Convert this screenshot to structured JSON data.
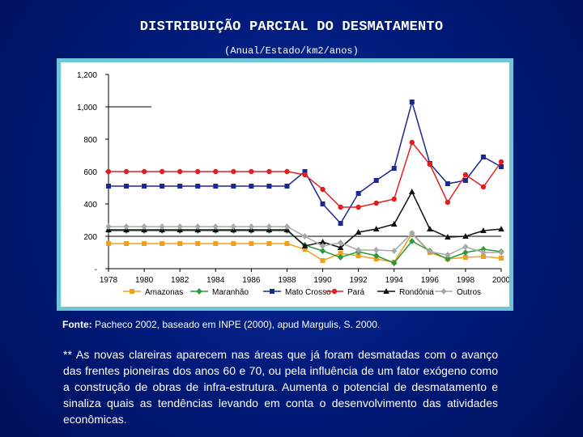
{
  "page": {
    "title": "DISTRIBUIÇÃO PARCIAL DO DESMATAMENTO",
    "subtitle": "(Anual/Estado/km2/anos)",
    "source_label": "Fonte:",
    "source_text": " Pacheco 2002, baseado em INPE (2000), apud Margulis, S. 2000.",
    "note": "** As novas clareiras aparecem nas áreas que já foram desmatadas com o avanço das frentes pioneiras dos anos 60 e 70, ou  pela influência de um fator exógeno como a construção de obras de infra-estrutura. Aumenta o potencial de desmatamento e sinaliza quais as tendências levando em conta o desenvolvimento das atividades econômicas."
  },
  "colors": {
    "background": "#001a78",
    "frame": "#6cc6d6"
  },
  "chart_data": {
    "type": "line",
    "x": [
      1978,
      1979,
      1980,
      1981,
      1982,
      1983,
      1984,
      1985,
      1986,
      1987,
      1988,
      1989,
      1990,
      1991,
      1992,
      1993,
      1994,
      1995,
      1996,
      1997,
      1998,
      1999,
      2000
    ],
    "x_tick_labels": [
      "1978",
      "1980",
      "1982",
      "1984",
      "1986",
      "1988",
      "1990",
      "1992",
      "1994",
      "1996",
      "1998",
      "2000"
    ],
    "x_ticks": [
      1978,
      1980,
      1982,
      1984,
      1986,
      1988,
      1990,
      1992,
      1994,
      1996,
      1998,
      2000
    ],
    "y_tick_labels": [
      "-",
      "200",
      "400",
      "600",
      "800",
      "1,000",
      "1,200"
    ],
    "y_ticks": [
      0,
      200,
      400,
      600,
      800,
      1000,
      1200
    ],
    "ylim": [
      0,
      1200
    ],
    "xlim": [
      1978,
      2000
    ],
    "legend_position": "bottom",
    "series": [
      {
        "name": "Amazonas",
        "color": "#f0a020",
        "marker": "square",
        "values": [
          155,
          155,
          155,
          155,
          155,
          155,
          155,
          155,
          155,
          155,
          155,
          120,
          50,
          95,
          80,
          60,
          40,
          215,
          100,
          60,
          70,
          75,
          65
        ]
      },
      {
        "name": "Maranhão",
        "color": "#2a9a3a",
        "marker": "diamond",
        "values": [
          235,
          235,
          235,
          235,
          235,
          235,
          235,
          235,
          235,
          235,
          235,
          145,
          110,
          70,
          105,
          80,
          35,
          170,
          110,
          60,
          100,
          120,
          105
        ]
      },
      {
        "name": "Mato Crosso",
        "color": "#1a2890",
        "marker": "square",
        "values": [
          510,
          510,
          510,
          510,
          510,
          510,
          510,
          510,
          510,
          510,
          510,
          600,
          400,
          280,
          465,
          545,
          620,
          1030,
          650,
          525,
          545,
          690,
          630
        ]
      },
      {
        "name": "Pará",
        "color": "#e02020",
        "marker": "circle",
        "values": [
          600,
          600,
          600,
          600,
          600,
          600,
          600,
          600,
          600,
          600,
          600,
          580,
          490,
          380,
          380,
          405,
          430,
          780,
          645,
          410,
          580,
          505,
          660
        ]
      },
      {
        "name": "Rondônia",
        "color": "#111111",
        "marker": "triangle",
        "values": [
          240,
          240,
          240,
          240,
          240,
          240,
          240,
          240,
          240,
          240,
          240,
          140,
          165,
          130,
          225,
          245,
          275,
          475,
          245,
          195,
          200,
          235,
          245
        ]
      },
      {
        "name": "Outros",
        "color": "#a8a8a8",
        "marker": "diamond",
        "values": [
          260,
          260,
          260,
          260,
          260,
          260,
          260,
          260,
          260,
          260,
          260,
          200,
          140,
          160,
          115,
          115,
          110,
          220,
          105,
          85,
          135,
          100,
          100
        ]
      }
    ]
  }
}
